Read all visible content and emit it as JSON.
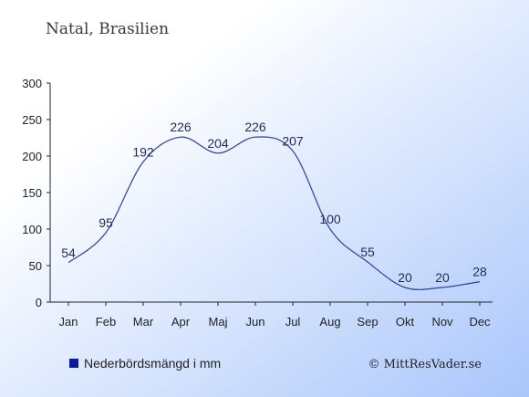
{
  "chart_data": {
    "type": "line",
    "title": "Natal, Brasilien",
    "categories": [
      "Jan",
      "Feb",
      "Mar",
      "Apr",
      "Maj",
      "Jun",
      "Jul",
      "Aug",
      "Sep",
      "Okt",
      "Nov",
      "Dec"
    ],
    "series": [
      {
        "name": "Nederbördsmängd i mm",
        "values": [
          54,
          95,
          192,
          226,
          204,
          226,
          207,
          100,
          55,
          20,
          20,
          28
        ]
      }
    ],
    "y_ticks": [
      0,
      50,
      100,
      150,
      200,
      250,
      300
    ],
    "ylim": [
      0,
      300
    ],
    "grid": false,
    "legend": "bottom-left",
    "line_color": "#2c3fa3",
    "legend_color": "#0a1aa0",
    "background_top": "#ffffff",
    "background_bottom": "#a9c6fb"
  },
  "copyright": "© MittResVader.se"
}
